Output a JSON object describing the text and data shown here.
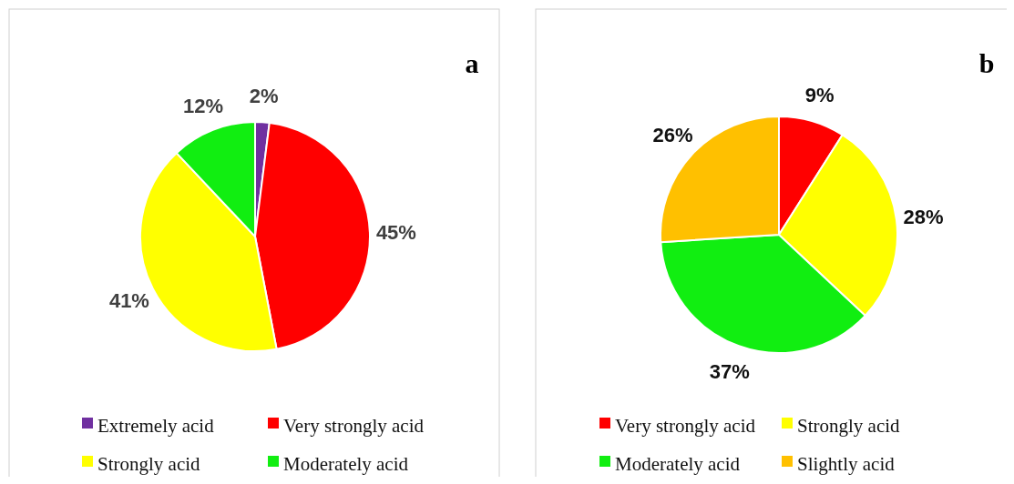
{
  "chart_data": [
    {
      "type": "pie",
      "title": "a",
      "categories": [
        "Extremely acid",
        "Very strongly acid",
        "Strongly acid",
        "Moderately acid"
      ],
      "values": [
        2,
        45,
        41,
        12
      ],
      "colors": [
        "#7030a0",
        "#ff0000",
        "#ffff00",
        "#11ee11"
      ],
      "value_labels": [
        "2%",
        "45%",
        "41%",
        "12%"
      ],
      "legend": "bottom"
    },
    {
      "type": "pie",
      "title": "b",
      "categories": [
        "Very strongly acid",
        "Strongly acid",
        "Moderately acid",
        "Slightly acid"
      ],
      "values": [
        9,
        28,
        37,
        26
      ],
      "colors": [
        "#ff0000",
        "#ffff00",
        "#11ee11",
        "#ffc000"
      ],
      "value_labels": [
        "9%",
        "28%",
        "37%",
        "26%"
      ],
      "legend": "bottom"
    }
  ]
}
